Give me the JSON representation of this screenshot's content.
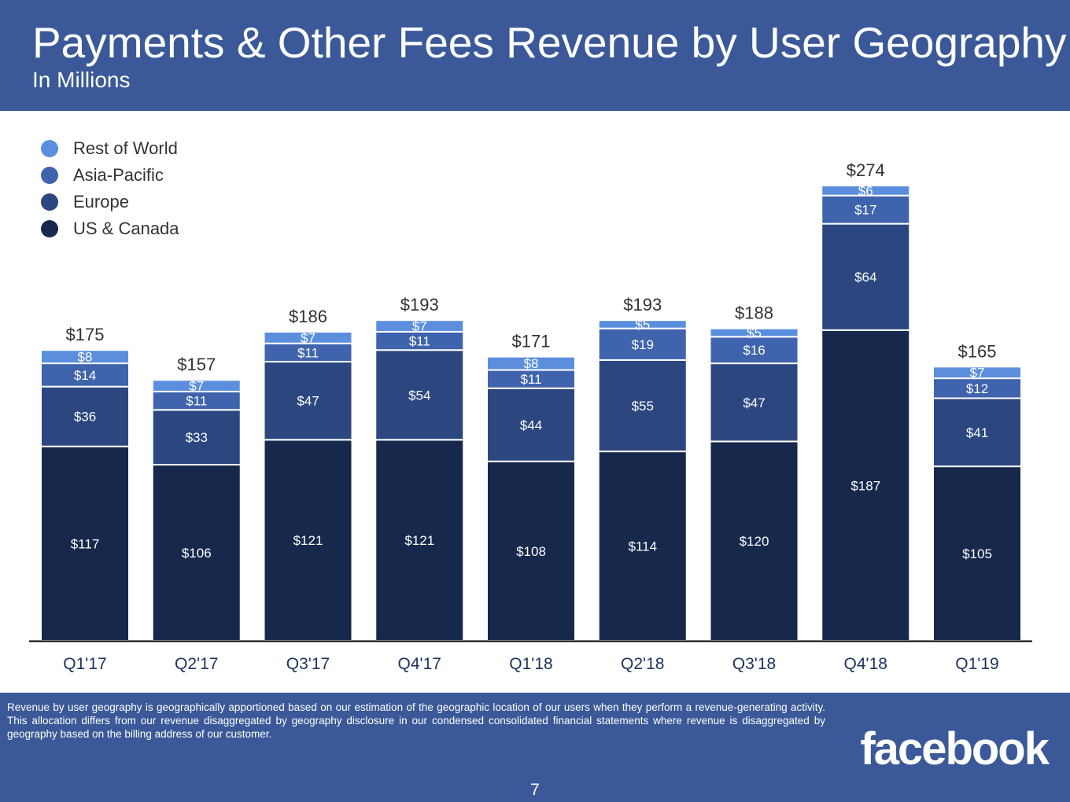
{
  "header": {
    "title": "Payments & Other Fees Revenue by User Geography",
    "subtitle": "In Millions"
  },
  "footer": {
    "footnote": "Revenue by user geography is geographically apportioned based on our estimation of the geographic location of our users when they perform a revenue-generating activity. This allocation differs from our revenue disaggregated by geography disclosure in our condensed consolidated financial statements where revenue is disaggregated by geography based on the billing address of our customer.",
    "logo_text": "facebook",
    "page_number": "7"
  },
  "colors": {
    "header_bg": "#3b5998",
    "rest_of_world": "#5b8fde",
    "asia_pacific": "#3f63ad",
    "europe": "#2c4680",
    "us_canada": "#17284d"
  },
  "chart_data": {
    "type": "bar",
    "stacked": true,
    "categories": [
      "Q1'17",
      "Q2'17",
      "Q3'17",
      "Q4'17",
      "Q1'18",
      "Q2'18",
      "Q3'18",
      "Q4'18",
      "Q1'19"
    ],
    "series": [
      {
        "name": "US & Canada",
        "color": "#17284d",
        "values": [
          117,
          106,
          121,
          121,
          108,
          114,
          120,
          187,
          105
        ],
        "labels": [
          "$117",
          "$106",
          "$121",
          "$121",
          "$108",
          "$114",
          "$120",
          "$187",
          "$105"
        ]
      },
      {
        "name": "Europe",
        "color": "#2c4680",
        "values": [
          36,
          33,
          47,
          54,
          44,
          55,
          47,
          64,
          41
        ],
        "labels": [
          "$36",
          "$33",
          "$47",
          "$54",
          "$44",
          "$55",
          "$47",
          "$64",
          "$41"
        ]
      },
      {
        "name": "Asia-Pacific",
        "color": "#3f63ad",
        "values": [
          14,
          11,
          11,
          11,
          11,
          19,
          16,
          17,
          12
        ],
        "labels": [
          "$14",
          "$11",
          "$11",
          "$11",
          "$11",
          "$19",
          "$16",
          "$17",
          "$12"
        ]
      },
      {
        "name": "Rest of World",
        "color": "#5b8fde",
        "values": [
          8,
          7,
          7,
          7,
          8,
          5,
          5,
          6,
          7
        ],
        "labels": [
          "$8",
          "$7",
          "$7",
          "$7",
          "$8",
          "$5",
          "$5",
          "$6",
          "$7"
        ]
      }
    ],
    "totals": [
      175,
      157,
      186,
      193,
      171,
      193,
      188,
      274,
      165
    ],
    "total_labels": [
      "$175",
      "$157",
      "$186",
      "$193",
      "$171",
      "$193",
      "$188",
      "$274",
      "$165"
    ],
    "legend_order": [
      "Rest of World",
      "Asia-Pacific",
      "Europe",
      "US & Canada"
    ],
    "legend_position": "top-left",
    "grid": false,
    "ylim": [
      0,
      274
    ]
  }
}
